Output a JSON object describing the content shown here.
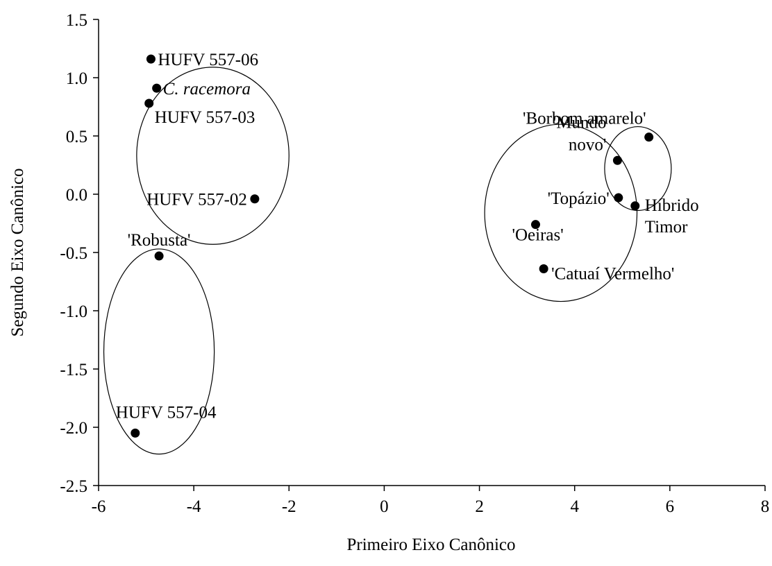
{
  "chart_data": {
    "type": "scatter",
    "title": "",
    "xlabel": "Primeiro Eixo Canônico",
    "ylabel": "Segundo Eixo Canônico",
    "xlim": [
      -6,
      8
    ],
    "ylim": [
      -2.5,
      1.5
    ],
    "xticks": [
      -6,
      -4,
      -2,
      0,
      2,
      4,
      6,
      8
    ],
    "yticks": [
      1.5,
      1.0,
      0.5,
      0.0,
      -0.5,
      -1.0,
      -1.5,
      -2.0,
      -2.5
    ],
    "xtick_labels": [
      "-6",
      "-4",
      "-2",
      "0",
      "2",
      "4",
      "6",
      "8"
    ],
    "ytick_labels": [
      "1.5",
      "1.0",
      "0.5",
      "0.0",
      "-0.5",
      "-1.0",
      "-1.5",
      "-2.0",
      "-2.5"
    ],
    "grid": false,
    "points": [
      {
        "label": "HUFV 557-06",
        "x": -4.9,
        "y": 1.16,
        "style": "normal"
      },
      {
        "label": "C. racemora",
        "x": -4.78,
        "y": 0.91,
        "style": "italic"
      },
      {
        "label": "HUFV 557-03",
        "x": -4.94,
        "y": 0.78,
        "style": "normal"
      },
      {
        "label": "HUFV 557-02",
        "x": -2.72,
        "y": -0.04,
        "style": "normal"
      },
      {
        "label": "'Robusta'",
        "x": -4.73,
        "y": -0.53,
        "style": "normal"
      },
      {
        "label": "HUFV 557-04",
        "x": -5.23,
        "y": -2.05,
        "style": "normal"
      },
      {
        "label": "'Borbom amarelo'",
        "x": 5.56,
        "y": 0.49,
        "style": "normal"
      },
      {
        "label": [
          "'Mundo",
          "novo'"
        ],
        "x": 4.9,
        "y": 0.29,
        "style": "normal"
      },
      {
        "label": "'Topázio'",
        "x": 4.92,
        "y": -0.03,
        "style": "normal"
      },
      {
        "label": [
          "Híbrido",
          "Timor"
        ],
        "x": 5.27,
        "y": -0.1,
        "style": "normal"
      },
      {
        "label": "'Oeiras'",
        "x": 3.18,
        "y": -0.26,
        "style": "normal"
      },
      {
        "label": "'Catuaí Vermelho'",
        "x": 3.35,
        "y": -0.64,
        "style": "normal"
      }
    ],
    "groups": [
      {
        "cx": -3.6,
        "cy": 0.33,
        "rx": 1.6,
        "ry": 0.76
      },
      {
        "cx": -4.73,
        "cy": -1.35,
        "rx": 1.16,
        "ry": 0.88
      },
      {
        "cx": 3.71,
        "cy": -0.16,
        "rx": 1.6,
        "ry": 0.76
      },
      {
        "cx": 5.33,
        "cy": 0.22,
        "rx": 0.7,
        "ry": 0.36
      }
    ]
  }
}
